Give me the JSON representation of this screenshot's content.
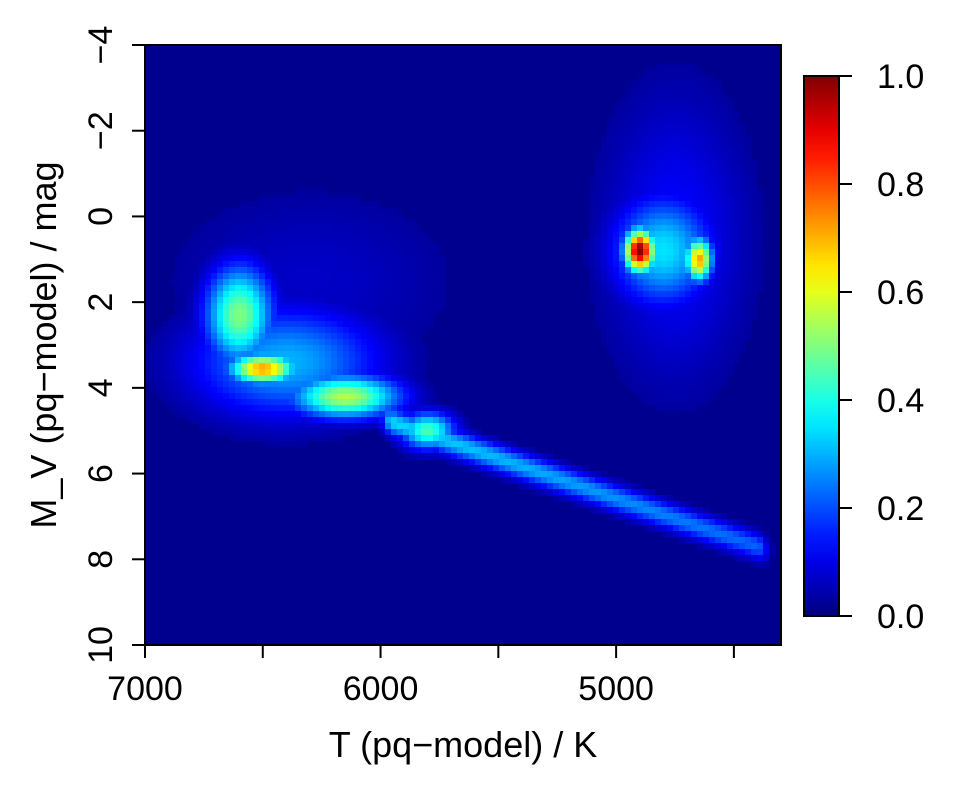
{
  "chart_data": {
    "type": "heatmap",
    "title": "",
    "xlabel": "T (pq−model) / K",
    "ylabel": "M_V (pq−model) / mag",
    "xlim": [
      7000,
      4300
    ],
    "ylim": [
      10,
      -4
    ],
    "xticks": [
      7000,
      6500,
      6000,
      5500,
      5000,
      4500
    ],
    "xtick_labels": [
      "7000",
      "",
      "6000",
      "",
      "5000",
      ""
    ],
    "yticks": [
      10,
      8,
      6,
      4,
      2,
      0,
      -2,
      -4
    ],
    "ytick_labels": [
      "10",
      "8",
      "6",
      "4",
      "2",
      "0",
      "−2",
      "−4"
    ],
    "colorscale": "jet",
    "background_color": "#00008f",
    "colorbar": {
      "range": [
        0.0,
        1.0
      ],
      "ticks": [
        0.0,
        0.2,
        0.4,
        0.6,
        0.8,
        1.0
      ],
      "tick_labels": [
        "0.0",
        "0.2",
        "0.4",
        "0.6",
        "0.8",
        "1.0"
      ]
    },
    "density_features": [
      {
        "name": "red-clump-peak-main",
        "T": 4900,
        "MV": 0.8,
        "sigma_T": 45,
        "sigma_MV": 0.35,
        "density": 1.0
      },
      {
        "name": "red-clump-peak-secondary",
        "T": 4650,
        "MV": 1.0,
        "sigma_T": 40,
        "sigma_MV": 0.35,
        "density": 0.72
      },
      {
        "name": "red-clump-halo",
        "T": 4800,
        "MV": 0.8,
        "sigma_T": 150,
        "sigma_MV": 0.9,
        "density": 0.35
      },
      {
        "name": "red-giant-branch-diffuse",
        "T": 4750,
        "MV": 0.5,
        "sigma_T": 220,
        "sigma_MV": 2.4,
        "density": 0.13
      },
      {
        "name": "turnoff-peak",
        "T": 6500,
        "MV": 3.55,
        "sigma_T": 100,
        "sigma_MV": 0.25,
        "density": 0.72
      },
      {
        "name": "turnoff-upper",
        "T": 6600,
        "MV": 2.3,
        "sigma_T": 100,
        "sigma_MV": 0.8,
        "density": 0.5
      },
      {
        "name": "turnoff-ridge",
        "T": 6150,
        "MV": 4.2,
        "sigma_T": 160,
        "sigma_MV": 0.35,
        "density": 0.55
      },
      {
        "name": "turnoff-envelope",
        "T": 6400,
        "MV": 3.4,
        "sigma_T": 280,
        "sigma_MV": 0.9,
        "density": 0.3
      },
      {
        "name": "subgiant-diffuse",
        "T": 6300,
        "MV": 1.5,
        "sigma_T": 450,
        "sigma_MV": 1.6,
        "density": 0.07
      },
      {
        "name": "main-sequence-knot",
        "T": 5800,
        "MV": 5.0,
        "sigma_T": 80,
        "sigma_MV": 0.3,
        "density": 0.45
      }
    ],
    "main_sequence_ridge": {
      "T_start": 5950,
      "MV_start": 4.8,
      "T_end": 4400,
      "MV_end": 7.7,
      "density": 0.34
    }
  }
}
